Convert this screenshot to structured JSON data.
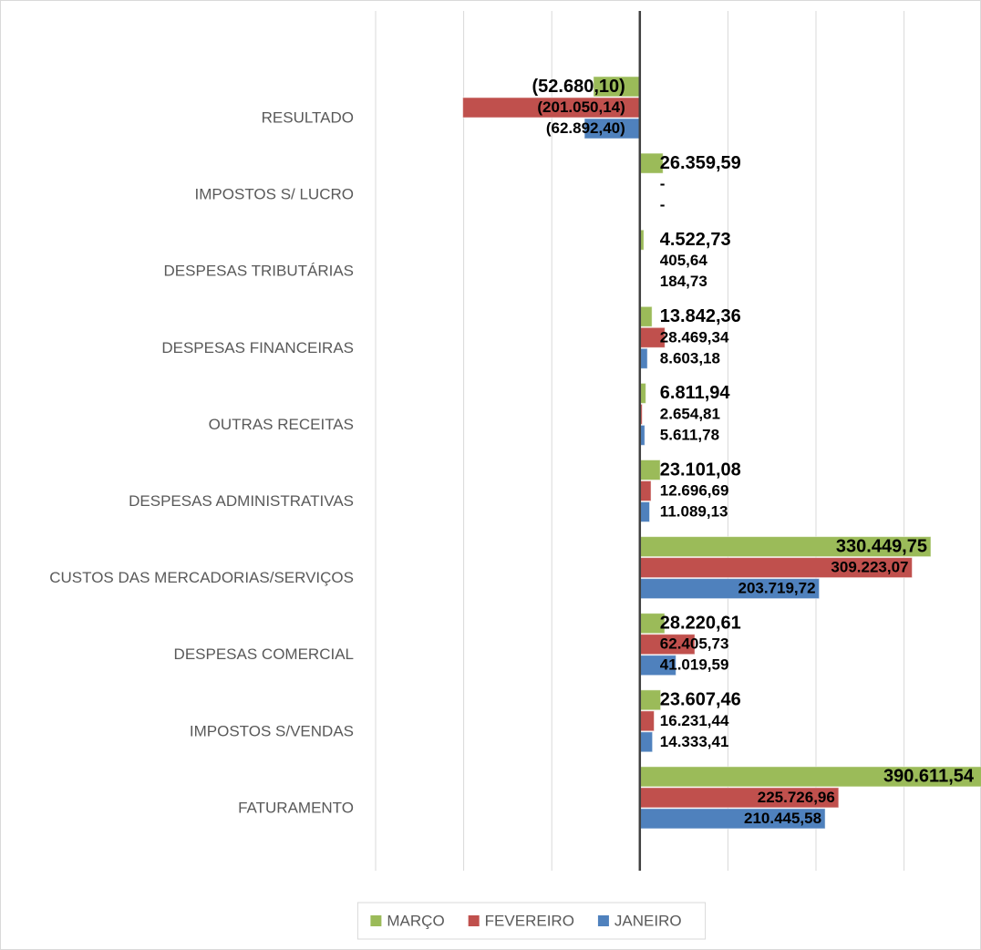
{
  "chart_data": {
    "type": "hbar",
    "categories": [
      "RESULTADO",
      "IMPOSTOS S/ LUCRO",
      "DESPESAS TRIBUTÁRIAS",
      "DESPESAS FINANCEIRAS",
      "OUTRAS RECEITAS",
      "DESPESAS ADMINISTRATIVAS",
      "CUSTOS DAS MERCADORIAS/SERVIÇOS",
      "DESPESAS COMERCIAL",
      "IMPOSTOS S/VENDAS",
      "FATURAMENTO"
    ],
    "series": [
      {
        "name": "MARÇO",
        "color": "#9bbb59",
        "values": [
          -52680.1,
          26359.59,
          4522.73,
          13842.36,
          6811.94,
          23101.08,
          330449.75,
          28220.61,
          23607.46,
          390611.54
        ],
        "value_labels": [
          "(52.680,10)",
          "26.359,59",
          "4.522,73",
          "13.842,36",
          "6.811,94",
          "23.101,08",
          "330.449,75",
          "28.220,61",
          "23.607,46",
          "390.611,54"
        ]
      },
      {
        "name": "FEVEREIRO",
        "color": "#c0504d",
        "values": [
          -201050.14,
          0,
          405.64,
          28469.34,
          2654.81,
          12696.69,
          309223.07,
          62405.73,
          16231.44,
          225726.96
        ],
        "value_labels": [
          "(201.050,14)",
          "-",
          "405,64",
          "28.469,34",
          "2.654,81",
          "12.696,69",
          "309.223,07",
          "62.405,73",
          "16.231,44",
          "225.726,96"
        ]
      },
      {
        "name": "JANEIRO",
        "color": "#4f81bd",
        "values": [
          -62892.4,
          0,
          184.73,
          8603.18,
          5611.78,
          11089.13,
          203719.72,
          41019.59,
          14333.41,
          210445.58
        ],
        "value_labels": [
          "(62.892,40)",
          "-",
          "184,73",
          "8.603,18",
          "5.611,78",
          "11.089,13",
          "203.719,72",
          "41.019,59",
          "14.333,41",
          "210.445,58"
        ]
      }
    ],
    "xlim": [
      -300000,
      400000
    ],
    "xticks": [
      -300000,
      -200000,
      -100000,
      0,
      100000,
      200000,
      300000
    ],
    "grid": true,
    "legend": "bottom"
  }
}
